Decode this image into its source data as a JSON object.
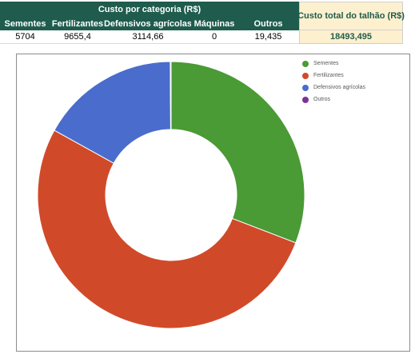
{
  "table": {
    "group_header": "Custo por categoria (R$)",
    "total_header": "Custo total do talhão (R$)",
    "columns": [
      "Sementes",
      "Fertilizantes",
      "Defensivos agrícolas",
      "Máquinas",
      "Outros"
    ],
    "values": [
      "5704",
      "9655,4",
      "3114,66",
      "0",
      "19,435"
    ],
    "total_value": "18493,495"
  },
  "chart_data": {
    "type": "pie",
    "donut": true,
    "categories": [
      "Sementes",
      "Fertilizantes",
      "Defensivos agrícolas",
      "Máquinas",
      "Outros"
    ],
    "values": [
      5704,
      9655.4,
      3114.66,
      0,
      19.435
    ],
    "colors": [
      "#4a9a35",
      "#d04a2a",
      "#4a6ccc",
      "#a06030",
      "#7a3399"
    ],
    "legend": {
      "position": "top-right",
      "entries": [
        "Sementes",
        "Fertilizantes",
        "Defensivos agrícolas",
        "Outros"
      ],
      "colors": [
        "#4a9a35",
        "#d04a2a",
        "#4a6ccc",
        "#7a3399"
      ]
    },
    "title": ""
  }
}
